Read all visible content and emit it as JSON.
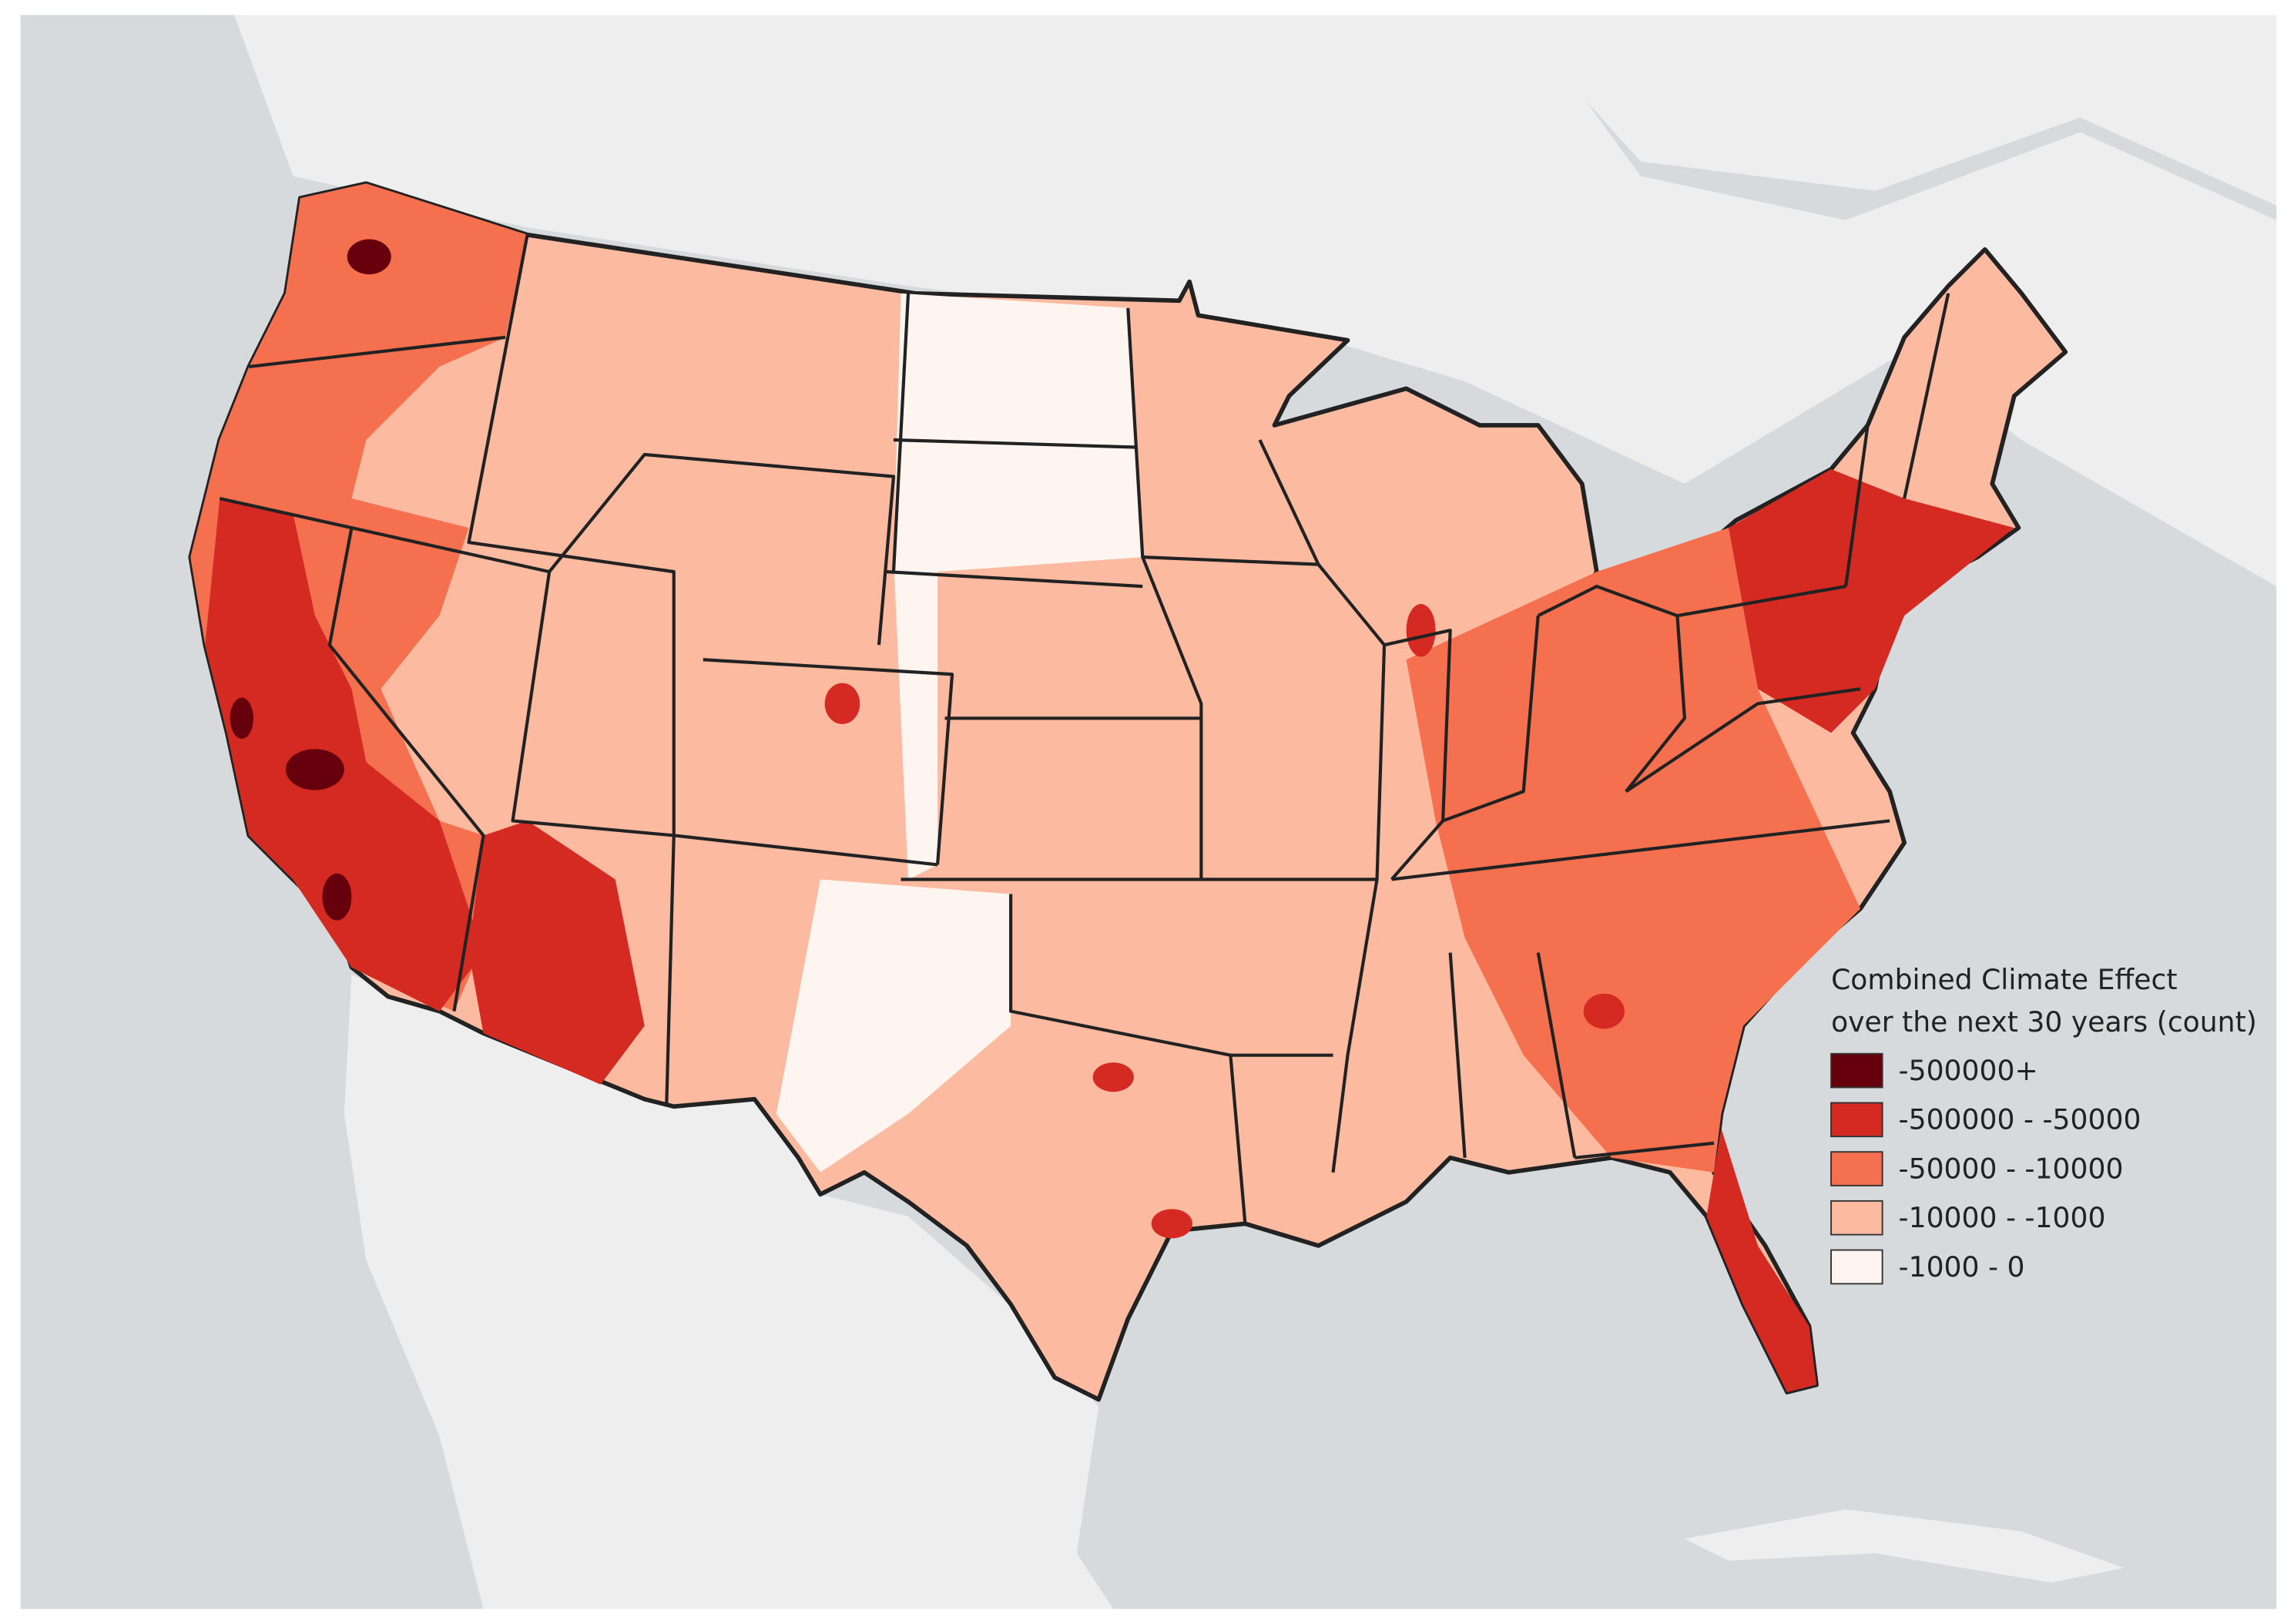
{
  "legend": {
    "title": [
      "Combined Climate Effect",
      "over the next 30 years (count)"
    ],
    "items": [
      {
        "label": "-500000+",
        "color": "#67000d"
      },
      {
        "label": "-500000 - -50000",
        "color": "#d42a22"
      },
      {
        "label": "-50000 - -10000",
        "color": "#f4704f"
      },
      {
        "label": "-10000 - -1000",
        "color": "#fcbba1"
      },
      {
        "label": "-1000 - 0",
        "color": "#fff5f0"
      }
    ]
  }
}
